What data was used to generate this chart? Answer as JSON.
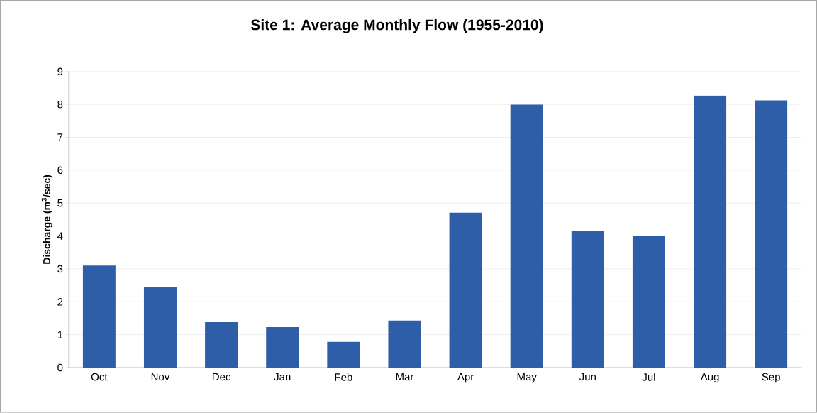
{
  "chart_data": {
    "type": "bar",
    "title": "Site 1: Average Monthly Flow (1955-2010)",
    "ylabel": "Discharge (m$^{3}$/sec)",
    "categories": [
      "Oct",
      "Nov",
      "Dec",
      "Jan",
      "Feb",
      "Mar",
      "Apr",
      "May",
      "Jun",
      "Jul",
      "Aug",
      "Sep"
    ],
    "values": [
      3.1,
      2.44,
      1.38,
      1.23,
      0.78,
      1.43,
      4.71,
      7.99,
      4.15,
      4.0,
      8.27,
      8.12
    ],
    "color": "#2f5ea8",
    "ylim": [
      0,
      9
    ],
    "yticks": [
      0,
      1,
      2,
      3,
      4,
      5,
      6,
      7,
      8,
      9
    ],
    "grid": "y"
  }
}
